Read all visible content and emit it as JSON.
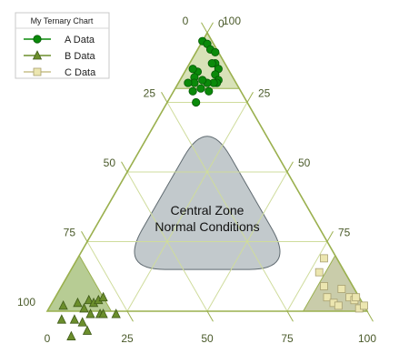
{
  "chart_data": {
    "type": "scatter",
    "subtype": "ternary",
    "title": "",
    "legend": {
      "title": "My Ternary Chart",
      "placement": "top-left",
      "entries": [
        "A Data",
        "B Data",
        "C Data"
      ]
    },
    "axes": {
      "range": [
        0,
        100
      ],
      "bottom_ticks": [
        "0",
        "25",
        "50",
        "75",
        "100"
      ],
      "left_ticks": [
        "25",
        "50",
        "75",
        "100"
      ],
      "right_ticks": [
        "0",
        "25",
        "50",
        "75"
      ],
      "apex_ticks": [
        "0",
        "100"
      ]
    },
    "grid": true,
    "colors": {
      "frame": "#9ab04e",
      "grid": "#cfdc9c",
      "tick": "#4a5a2a",
      "a_marker": "#0a8a0a",
      "a_zone": "#d8e2b8",
      "b_marker": "#6b8e2c",
      "b_zone": "#b7cc94",
      "c_marker": "#ece6b0",
      "c_zone": "#c9ccaa",
      "central_zone": "#c2c9cc"
    },
    "central_zone": {
      "label_lines": [
        "Central Zone",
        "Normal Conditions"
      ]
    },
    "series": [
      {
        "name": "A Data",
        "marker": "circle",
        "points": [
          {
            "b": 3,
            "c": 0
          },
          {
            "b": 2,
            "c": 2
          },
          {
            "b": 2,
            "c": 4
          },
          {
            "b": 1,
            "c": 6
          },
          {
            "b": 3,
            "c": 8
          },
          {
            "b": 4,
            "c": 7
          },
          {
            "b": 3,
            "c": 10
          },
          {
            "b": 5,
            "c": 10
          },
          {
            "b": 5,
            "c": 12
          },
          {
            "b": 6,
            "c": 12
          },
          {
            "b": 7,
            "c": 11
          },
          {
            "b": 10,
            "c": 4
          },
          {
            "b": 9,
            "c": 9
          },
          {
            "b": 10,
            "c": 11
          },
          {
            "b": 10,
            "c": 7
          },
          {
            "b": 11,
            "c": 2
          },
          {
            "b": 12,
            "c": 4
          },
          {
            "b": 12,
            "c": 8
          },
          {
            "b": 13,
            "c": 5
          },
          {
            "b": 15,
            "c": 3
          },
          {
            "b": 15,
            "c": 6
          },
          {
            "b": 16,
            "c": 9
          }
        ]
      },
      {
        "name": "B Data",
        "marker": "triangle",
        "points": [
          {
            "b": 97,
            "c": 6
          },
          {
            "b": 97,
            "c": 12
          },
          {
            "b": 94,
            "c": 4
          },
          {
            "b": 93,
            "c": 10
          },
          {
            "b": 91,
            "c": 13
          },
          {
            "b": 91,
            "c": 16
          },
          {
            "b": 89,
            "c": 8
          },
          {
            "b": 88,
            "c": 11
          },
          {
            "b": 87,
            "c": 14
          },
          {
            "b": 85,
            "c": 11
          },
          {
            "b": 84,
            "c": 13
          },
          {
            "b": 84,
            "c": 17
          },
          {
            "b": 82,
            "c": 14
          },
          {
            "b": 83,
            "c": 18
          },
          {
            "b": 80,
            "c": 15
          },
          {
            "b": 79,
            "c": 22
          }
        ]
      },
      {
        "name": "C Data",
        "marker": "square",
        "points": [
          {
            "b": 4,
            "c": 77
          },
          {
            "b": 8,
            "c": 78
          },
          {
            "b": 9,
            "c": 82
          },
          {
            "b": 10,
            "c": 85
          },
          {
            "b": 9,
            "c": 88
          },
          {
            "b": 8,
            "c": 90
          },
          {
            "b": 4,
            "c": 88
          },
          {
            "b": 3,
            "c": 92
          },
          {
            "b": 2,
            "c": 94
          },
          {
            "b": 2,
            "c": 97
          },
          {
            "b": 1,
            "c": 94
          },
          {
            "b": 0,
            "c": 98
          }
        ]
      }
    ]
  }
}
